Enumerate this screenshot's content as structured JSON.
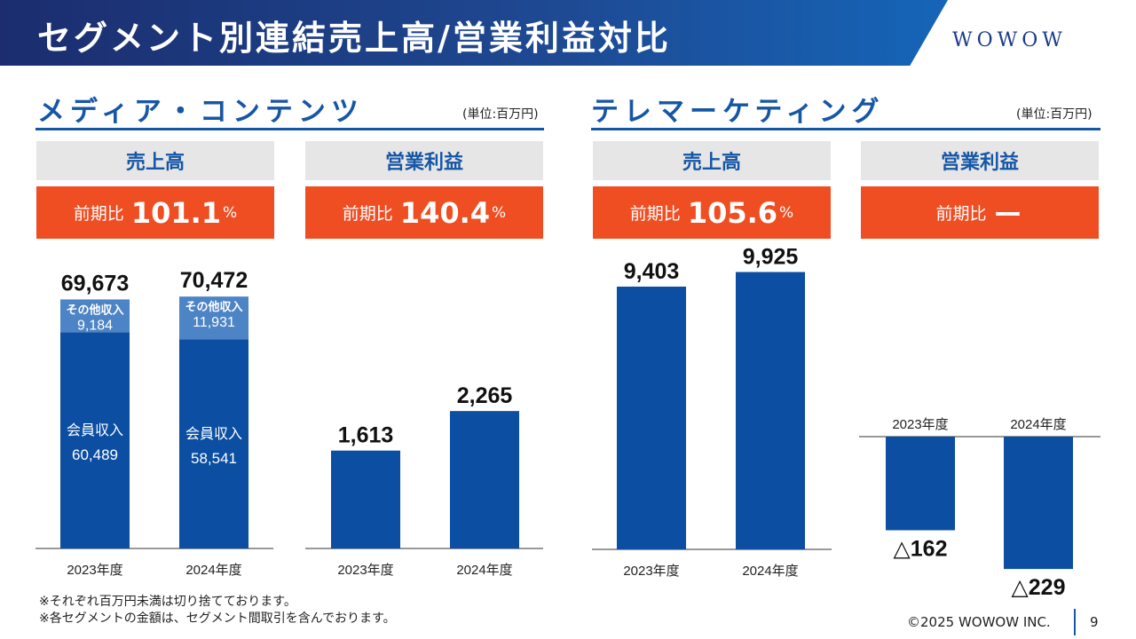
{
  "header": {
    "title": "セグメント別連結売上高/営業利益対比",
    "logo": "WOWOW"
  },
  "colors": {
    "bar": "#0b4ea2",
    "bar_light": "#4d84c6",
    "accent": "#ef4e23",
    "label_bg": "#e6e6e6",
    "title_blue": "#1656a6"
  },
  "sections": [
    {
      "title": "メディア・コンテンツ",
      "unit": "(単位:百万円)"
    },
    {
      "title": "テレマーケティング",
      "unit": "(単位:百万円)"
    }
  ],
  "panels": [
    {
      "label": "売上高",
      "ratio_prefix": "前期比",
      "ratio_value": "101.1",
      "ratio_unit": "%"
    },
    {
      "label": "営業利益",
      "ratio_prefix": "前期比",
      "ratio_value": "140.4",
      "ratio_unit": "%"
    },
    {
      "label": "売上高",
      "ratio_prefix": "前期比",
      "ratio_value": "105.6",
      "ratio_unit": "%"
    },
    {
      "label": "営業利益",
      "ratio_prefix": "前期比",
      "ratio_value": "ー",
      "ratio_unit": ""
    }
  ],
  "chart_data": [
    {
      "type": "bar",
      "stacked": true,
      "categories": [
        "2023年度",
        "2024年度"
      ],
      "series": [
        {
          "name": "会員収入",
          "values": [
            60489,
            58541
          ],
          "labels": [
            "60,489",
            "58,541"
          ]
        },
        {
          "name": "その他収入",
          "values": [
            9184,
            11931
          ],
          "labels": [
            "9,184",
            "11,931"
          ]
        }
      ],
      "totals": [
        69673,
        70472
      ],
      "total_labels": [
        "69,673",
        "70,472"
      ],
      "ylim": [
        0,
        72000
      ]
    },
    {
      "type": "bar",
      "categories": [
        "2023年度",
        "2024年度"
      ],
      "values": [
        1613,
        2265
      ],
      "value_labels": [
        "1,613",
        "2,265"
      ],
      "ylim": [
        0,
        4900
      ]
    },
    {
      "type": "bar",
      "categories": [
        "2023年度",
        "2024年度"
      ],
      "values": [
        9403,
        9925
      ],
      "value_labels": [
        "9,403",
        "9,925"
      ],
      "ylim": [
        0,
        10100
      ]
    },
    {
      "type": "bar",
      "categories": [
        "2023年度",
        "2024年度"
      ],
      "values": [
        -162,
        -229
      ],
      "value_labels": [
        "△162",
        "△229"
      ],
      "ylim": [
        -235,
        0
      ]
    }
  ],
  "footnotes": [
    "※それぞれ百万円未満は切り捨てております。",
    "※各セグメントの金額は、セグメント間取引を含んでおります。"
  ],
  "footer": {
    "copyright": "©2025 WOWOW INC.",
    "page": "9"
  }
}
